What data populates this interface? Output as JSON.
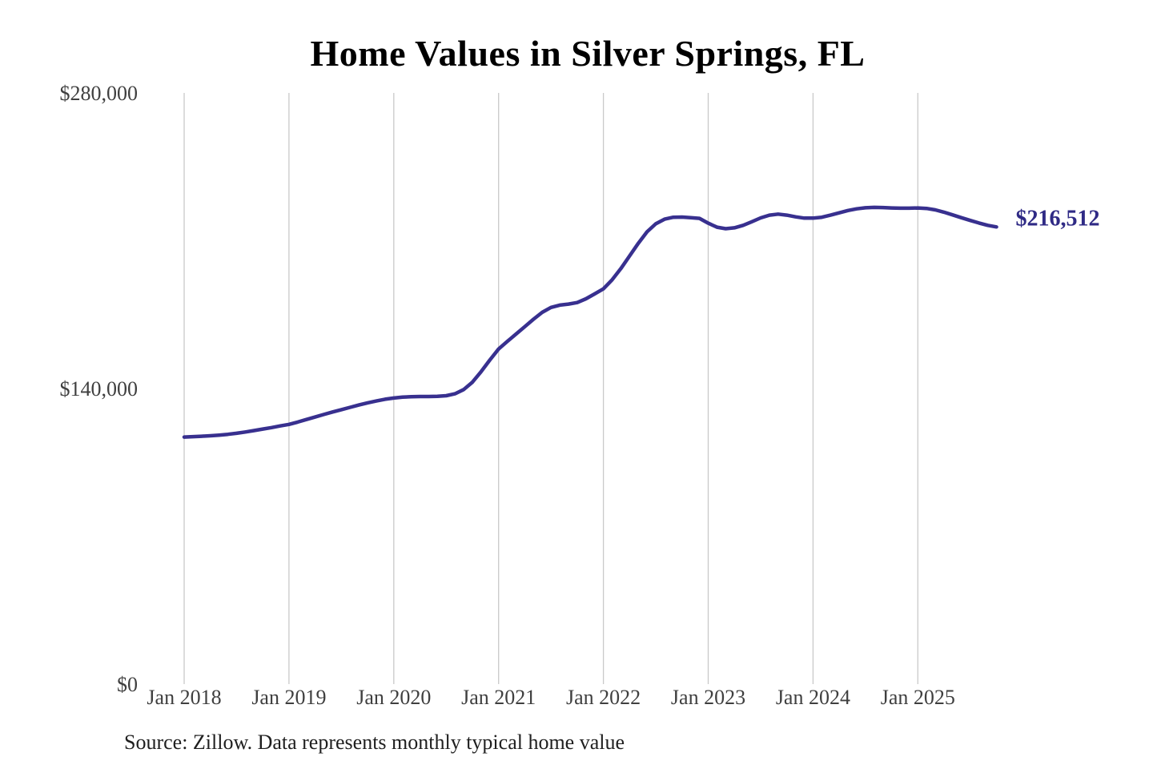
{
  "chart_data": {
    "type": "line",
    "title": "Home Values in Silver Springs, FL",
    "source_note": "Source: Zillow. Data represents monthly typical home value",
    "series_name": "Typical home value",
    "xlabel": "",
    "ylabel": "",
    "x_start": "Jan 2018",
    "x_end": "Oct 2025",
    "frequency": "monthly",
    "x_ticks": [
      "Jan 2018",
      "Jan 2019",
      "Jan 2020",
      "Jan 2021",
      "Jan 2022",
      "Jan 2023",
      "Jan 2024",
      "Jan 2025"
    ],
    "y_ticks": [
      {
        "label": "$0",
        "value": 0
      },
      {
        "label": "$140,000",
        "value": 140000
      },
      {
        "label": "$280,000",
        "value": 280000
      }
    ],
    "ylim": [
      0,
      280000
    ],
    "grid": "vertical-only",
    "legend": "none",
    "end_label": "$216,512",
    "end_value": 216512,
    "colors": {
      "line": "#38308f",
      "end_label": "#2f2a85",
      "grid": "#c9c9c9",
      "axis_text": "#3f3f3f",
      "title_text": "#000000",
      "source_text": "#1f1f1f",
      "background": "#ffffff"
    },
    "values": [
      117000,
      117200,
      117400,
      117600,
      117900,
      118300,
      118800,
      119400,
      120100,
      120800,
      121500,
      122300,
      123000,
      124100,
      125300,
      126500,
      127700,
      128900,
      130000,
      131100,
      132200,
      133200,
      134100,
      134900,
      135500,
      135900,
      136100,
      136200,
      136200,
      136300,
      136600,
      137500,
      139500,
      143000,
      148000,
      153500,
      158700,
      162300,
      165800,
      169300,
      172800,
      176100,
      178400,
      179500,
      180000,
      180700,
      182500,
      184800,
      187200,
      191500,
      196800,
      202800,
      208800,
      214200,
      218000,
      220200,
      221100,
      221200,
      220900,
      220600,
      218300,
      216400,
      215700,
      216100,
      217300,
      219000,
      220800,
      222100,
      222600,
      222100,
      221300,
      220700,
      220700,
      221100,
      222100,
      223200,
      224300,
      225100,
      225600,
      225800,
      225700,
      225500,
      225400,
      225400,
      225500,
      225300,
      224600,
      223500,
      222200,
      220900,
      219600,
      218400,
      217300,
      216512
    ]
  }
}
